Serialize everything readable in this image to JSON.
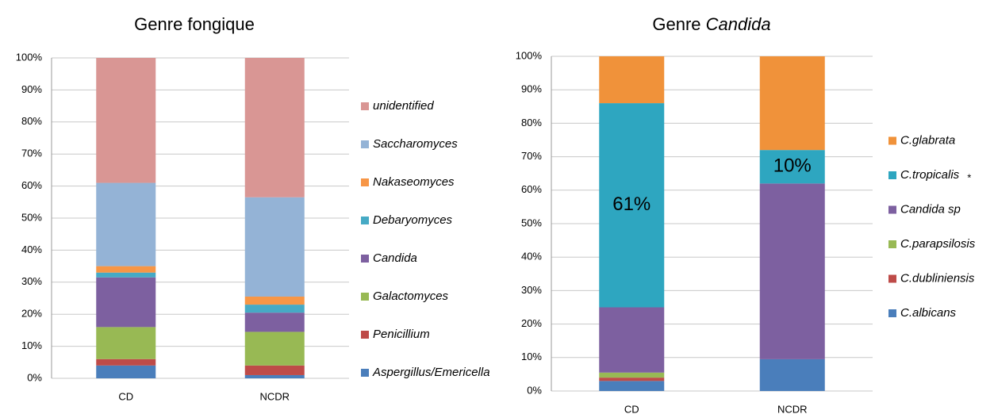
{
  "chart_data": [
    {
      "type": "stacked_bar",
      "title": "Genre fongique",
      "categories": [
        "CD",
        "NCDR"
      ],
      "ylim": [
        0,
        100
      ],
      "yticks": [
        {
          "value": 0,
          "label": "0%"
        },
        {
          "value": 10,
          "label": "10%"
        },
        {
          "value": 20,
          "label": "20%"
        },
        {
          "value": 30,
          "label": "30%"
        },
        {
          "value": 40,
          "label": "40%"
        },
        {
          "value": 50,
          "label": "50%"
        },
        {
          "value": 60,
          "label": "60%"
        },
        {
          "value": 70,
          "label": "70%"
        },
        {
          "value": 80,
          "label": "80%"
        },
        {
          "value": 90,
          "label": "90%"
        },
        {
          "value": 100,
          "label": "100%"
        }
      ],
      "grid": true,
      "legend": "right",
      "series": [
        {
          "name": "Aspergillus/Emericella",
          "color": "#4a7ebb",
          "values": [
            4,
            1
          ]
        },
        {
          "name": "Penicillium",
          "color": "#be4b48",
          "values": [
            2,
            3
          ]
        },
        {
          "name": "Galactomyces",
          "color": "#98b954",
          "values": [
            10,
            10.5
          ]
        },
        {
          "name": "Candida",
          "color": "#7d60a0",
          "values": [
            15.5,
            6
          ]
        },
        {
          "name": "Debaryomyces",
          "color": "#46aac5",
          "values": [
            1.5,
            2.5
          ]
        },
        {
          "name": "Nakaseomyces",
          "color": "#f79646",
          "values": [
            2,
            2.5
          ]
        },
        {
          "name": "Saccharomyces",
          "color": "#94b3d6",
          "values": [
            26,
            31
          ]
        },
        {
          "name": "unidentified",
          "color": "#d99694",
          "values": [
            39,
            43.5
          ]
        }
      ]
    },
    {
      "type": "stacked_bar",
      "title": "Genre",
      "title_italic": "Candida",
      "categories": [
        "CD",
        "NCDR"
      ],
      "ylim": [
        0,
        100
      ],
      "yticks": [
        {
          "value": 0,
          "label": "0%"
        },
        {
          "value": 10,
          "label": "10%"
        },
        {
          "value": 20,
          "label": "20%"
        },
        {
          "value": 30,
          "label": "30%"
        },
        {
          "value": 40,
          "label": "40%"
        },
        {
          "value": 50,
          "label": "50%"
        },
        {
          "value": 60,
          "label": "60%"
        },
        {
          "value": 70,
          "label": "70%"
        },
        {
          "value": 80,
          "label": "80%"
        },
        {
          "value": 90,
          "label": "90%"
        },
        {
          "value": 100,
          "label": "100%"
        }
      ],
      "grid": true,
      "legend": "right",
      "series": [
        {
          "name": "C.albicans",
          "color": "#4a7ebb",
          "values": [
            3,
            9.5
          ]
        },
        {
          "name": "C.dubliniensis",
          "color": "#be4b48",
          "values": [
            1,
            0
          ]
        },
        {
          "name": "C.parapsilosis",
          "color": "#98b954",
          "values": [
            1.5,
            0
          ]
        },
        {
          "name": "Candida sp",
          "color": "#7d60a0",
          "values": [
            19.5,
            52.5
          ]
        },
        {
          "name": "C.tropicalis",
          "color": "#2ea6c0",
          "values": [
            61,
            10
          ],
          "value_labels": [
            "61%",
            "10%"
          ],
          "annotation": "*"
        },
        {
          "name": "C.glabrata",
          "color": "#f0923a",
          "values": [
            14,
            28
          ]
        }
      ]
    }
  ]
}
